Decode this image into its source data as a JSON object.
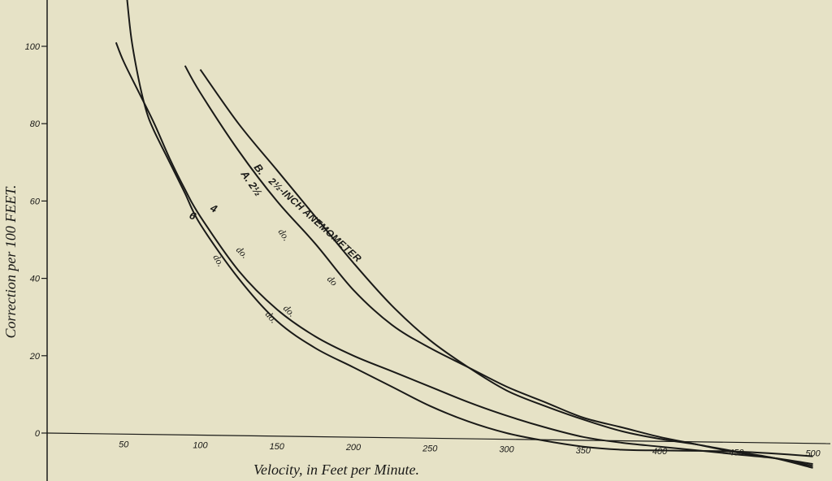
{
  "chart_data": {
    "type": "line",
    "xlabel": "Velocity, in Feet per Minute.",
    "ylabel": "Correction per 100 FEET.",
    "xlim": [
      0,
      500
    ],
    "ylim": [
      -10,
      110
    ],
    "x_ticks": [
      "50",
      "100",
      "150",
      "200",
      "250",
      "300",
      "350",
      "400",
      "450",
      "500"
    ],
    "y_ticks": [
      "0",
      "20",
      "40",
      "60",
      "80",
      "100"
    ],
    "grid": false,
    "series": [
      {
        "name": "B. 2½-INCH ANEMOMETER",
        "label_parts": [
          "B.",
          "2½-INCH ANEMOMETER"
        ],
        "x": [
          100,
          125,
          150,
          175,
          200,
          225,
          250,
          275,
          300,
          325,
          350,
          375,
          400,
          425,
          450,
          475,
          500
        ],
        "y": [
          94,
          80,
          68,
          56,
          44,
          33,
          24,
          17,
          11,
          7,
          3.5,
          0.5,
          -1.5,
          -3,
          -4.8,
          -6.5,
          -9
        ]
      },
      {
        "name": "A. 2½ do.",
        "label_parts": [
          "A. 2½",
          "do.",
          "do"
        ],
        "x": [
          90,
          100,
          125,
          150,
          175,
          200,
          225,
          250,
          275,
          300,
          325,
          350,
          375,
          400,
          425,
          450,
          475,
          500
        ],
        "y": [
          95,
          88,
          73,
          60,
          49,
          37,
          28,
          22,
          17,
          12,
          8,
          4,
          1.5,
          -1,
          -3,
          -5,
          -6.5,
          -8.5
        ]
      },
      {
        "name": "4 do.",
        "label_parts": [
          "4",
          "do.",
          "do."
        ],
        "x": [
          45,
          50,
          60,
          70,
          80,
          90,
          100,
          125,
          150,
          175,
          200,
          225,
          250,
          275,
          300,
          325,
          350,
          375,
          400,
          425,
          450,
          475,
          500
        ],
        "y": [
          101,
          96,
          88,
          80,
          71,
          63,
          56,
          42,
          32,
          25,
          20,
          16,
          12,
          8,
          4.5,
          1.5,
          -1,
          -2.5,
          -3.5,
          -4.5,
          -5.5,
          -6.5,
          -8
        ]
      },
      {
        "name": "6 do.",
        "label_parts": [
          "6",
          "do.",
          "do."
        ],
        "x": [
          52,
          55,
          60,
          65,
          70,
          80,
          90,
          100,
          125,
          150,
          175,
          200,
          225,
          250,
          275,
          300,
          325,
          350,
          375,
          400,
          425,
          450,
          475,
          500
        ],
        "y": [
          113,
          102,
          91,
          83,
          78,
          70,
          62,
          54,
          40,
          29,
          22,
          17,
          12,
          7,
          3,
          0,
          -2,
          -3.5,
          -4.3,
          -4.5,
          -4.6,
          -4.8,
          -5.3,
          -6
        ]
      }
    ]
  }
}
